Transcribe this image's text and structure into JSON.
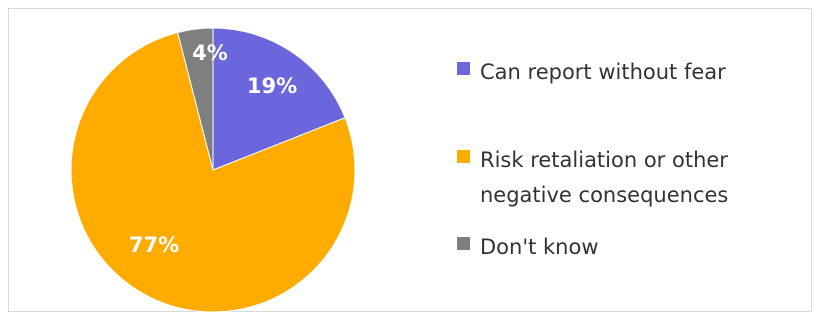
{
  "chart_data": {
    "type": "pie",
    "title": "",
    "start_angle_deg": 0,
    "direction": "clockwise",
    "legend_position": "right",
    "slices": [
      {
        "label": "Can report without fear",
        "value": 19,
        "display": "19%",
        "color": "#6b66dc"
      },
      {
        "label": "Risk retaliation or other negative consequences",
        "value": 77,
        "display": "77%",
        "color": "#ffab00"
      },
      {
        "label": "Don't know",
        "value": 4,
        "display": "4%",
        "color": "#7f7f7f"
      }
    ],
    "legend": [
      {
        "lines": [
          "Can report without fear"
        ]
      },
      {
        "lines": [
          "Risk retaliation or other",
          "negative consequences"
        ]
      },
      {
        "lines": [
          "Don't know"
        ]
      }
    ]
  }
}
